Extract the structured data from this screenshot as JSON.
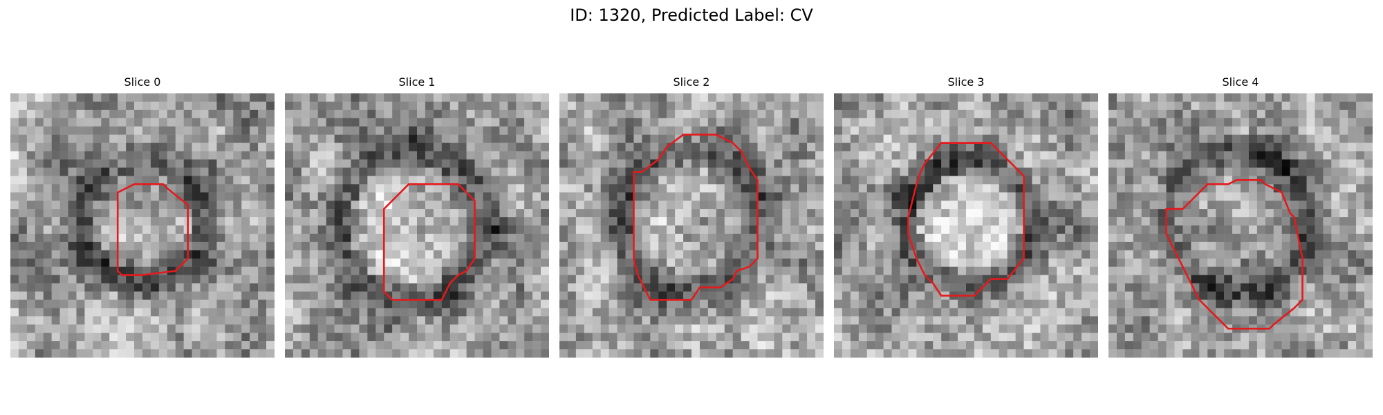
{
  "figure": {
    "title": "ID: 1320, Predicted Label: CV"
  },
  "panels": [
    {
      "title": "Slice 0",
      "image": "grayscale-noise-patch-with-red-contour"
    },
    {
      "title": "Slice 1",
      "image": "grayscale-noise-patch-with-red-contour"
    },
    {
      "title": "Slice 2",
      "image": "grayscale-noise-patch-with-red-contour"
    },
    {
      "title": "Slice 3",
      "image": "grayscale-noise-patch-with-red-contour"
    },
    {
      "title": "Slice 4",
      "image": "grayscale-noise-patch-with-red-contour"
    }
  ],
  "colors": {
    "contour": "#e41a1c",
    "background": "#ffffff"
  }
}
